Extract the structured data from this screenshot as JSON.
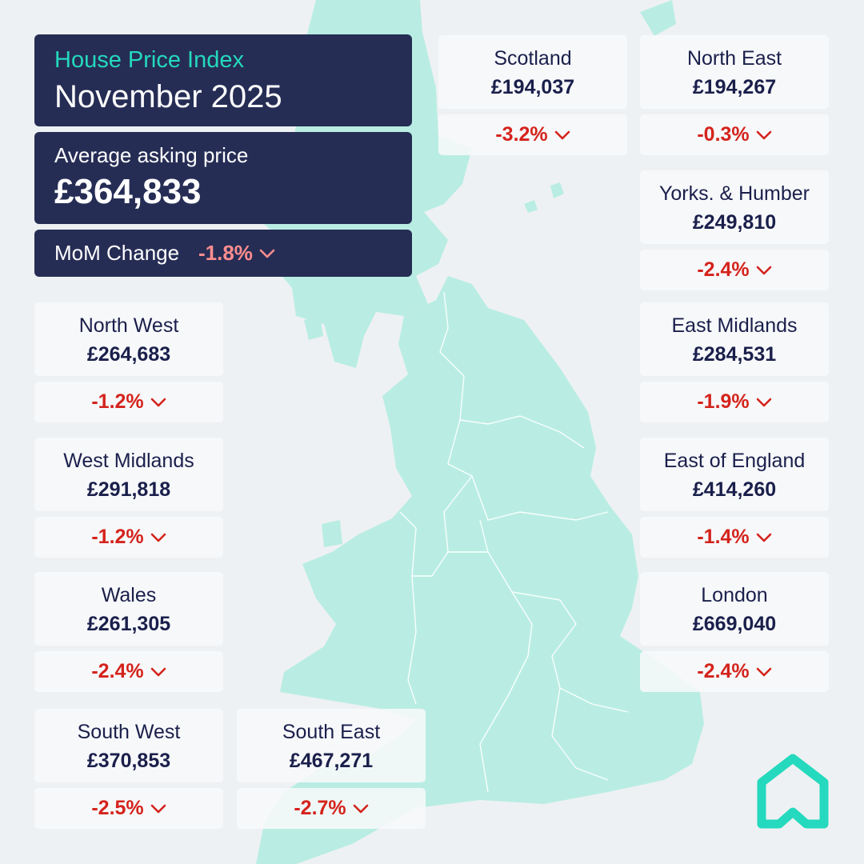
{
  "header": {
    "title": "House Price Index",
    "period": "November 2025"
  },
  "summary": {
    "avg_label": "Average asking price",
    "avg_value": "£364,833",
    "mom_label": "MoM Change",
    "mom_value": "-1.8%"
  },
  "colors": {
    "panel": "#262d55",
    "accent": "#24d9bd",
    "negative": "#d4231c",
    "summary_negative": "#ff8e8e",
    "land": "#b9ede3",
    "background": "#eef1f3"
  },
  "icons": {
    "change": "chevron-down-icon",
    "brand": "house-logo-icon"
  },
  "regions": [
    {
      "id": "scotland",
      "name": "Scotland",
      "price": "£194,037",
      "change": "-3.2%"
    },
    {
      "id": "north-east",
      "name": "North East",
      "price": "£194,267",
      "change": "-0.3%"
    },
    {
      "id": "yorks-humber",
      "name": "Yorks. & Humber",
      "price": "£249,810",
      "change": "-2.4%"
    },
    {
      "id": "north-west",
      "name": "North West",
      "price": "£264,683",
      "change": "-1.2%"
    },
    {
      "id": "east-midlands",
      "name": "East Midlands",
      "price": "£284,531",
      "change": "-1.9%"
    },
    {
      "id": "west-midlands",
      "name": "West Midlands",
      "price": "£291,818",
      "change": "-1.2%"
    },
    {
      "id": "east-of-england",
      "name": "East of England",
      "price": "£414,260",
      "change": "-1.4%"
    },
    {
      "id": "wales",
      "name": "Wales",
      "price": "£261,305",
      "change": "-2.4%"
    },
    {
      "id": "london",
      "name": "London",
      "price": "£669,040",
      "change": "-2.4%"
    },
    {
      "id": "south-west",
      "name": "South West",
      "price": "£370,853",
      "change": "-2.5%"
    },
    {
      "id": "south-east",
      "name": "South East",
      "price": "£467,271",
      "change": "-2.7%"
    }
  ]
}
